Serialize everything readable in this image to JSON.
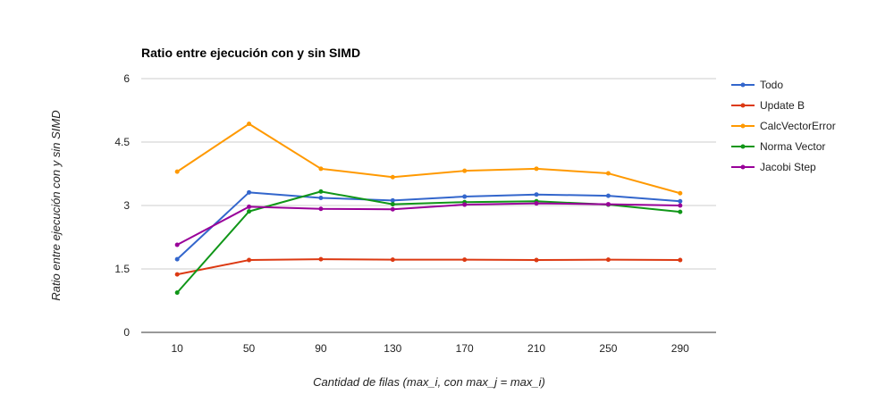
{
  "chart_data": {
    "type": "line",
    "title": "Ratio entre ejecución con y sin SIMD",
    "xlabel": "Cantidad de filas (max_i, con max_j = max_i)",
    "ylabel": "Ratio entre ejecución con y sin SIMD",
    "categories": [
      "10",
      "50",
      "90",
      "130",
      "170",
      "210",
      "250",
      "290"
    ],
    "ylim": [
      0,
      6
    ],
    "yticks": [
      "0",
      "1.5",
      "3",
      "4.5",
      "6"
    ],
    "grid": true,
    "legend_position": "right",
    "series": [
      {
        "name": "Todo",
        "color": "#3366cc",
        "values": [
          1.73,
          3.31,
          3.18,
          3.12,
          3.21,
          3.26,
          3.23,
          3.1
        ]
      },
      {
        "name": "Update B",
        "color": "#dc3912",
        "values": [
          1.37,
          1.71,
          1.73,
          1.72,
          1.72,
          1.71,
          1.72,
          1.71
        ]
      },
      {
        "name": "CalcVectorError",
        "color": "#ff9900",
        "values": [
          3.8,
          4.93,
          3.87,
          3.67,
          3.82,
          3.87,
          3.76,
          3.29
        ]
      },
      {
        "name": "Norma Vector",
        "color": "#109618",
        "values": [
          0.94,
          2.86,
          3.33,
          3.03,
          3.08,
          3.1,
          3.02,
          2.85
        ]
      },
      {
        "name": "Jacobi Step",
        "color": "#990099",
        "values": [
          2.07,
          2.97,
          2.92,
          2.91,
          3.02,
          3.05,
          3.03,
          3.0
        ]
      }
    ]
  }
}
